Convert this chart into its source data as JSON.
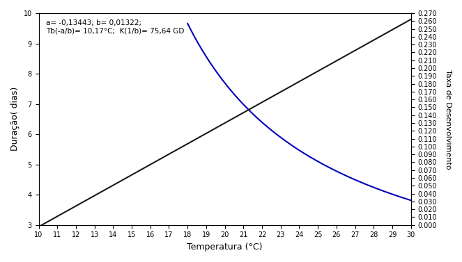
{
  "a": -0.13443,
  "b": 0.01322,
  "T_min": 10,
  "T_max": 30,
  "T_blue_min": 18,
  "left_ylim": [
    3,
    10
  ],
  "right_ylim": [
    0.0,
    0.27
  ],
  "left_yticks": [
    3,
    4,
    5,
    6,
    7,
    8,
    9,
    10
  ],
  "xticks": [
    10,
    11,
    12,
    13,
    14,
    15,
    16,
    17,
    18,
    19,
    20,
    21,
    22,
    23,
    24,
    25,
    26,
    27,
    28,
    29,
    30
  ],
  "xlabel": "Temperatura (°C)",
  "ylabel_left": "Duração( dias)",
  "ylabel_right": "Taxa de Desenvolvimento",
  "annotation_line1": "a= -0,13443; b= 0,01322;",
  "annotation_line2": "Tb(-a/b)= 10,17°C;  K(1/b)= 75,64 GD",
  "line_color_black": "#1a1a1a",
  "line_color_blue": "#0000bb",
  "figsize": [
    6.63,
    3.77
  ],
  "dpi": 100
}
